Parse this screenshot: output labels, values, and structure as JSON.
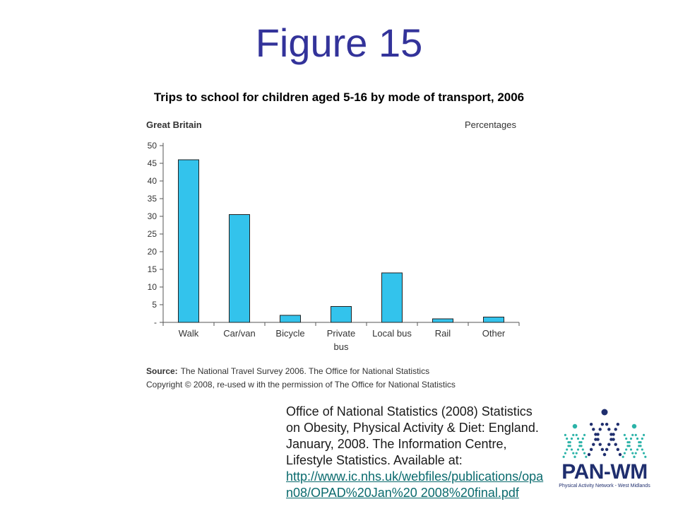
{
  "slide": {
    "title": "Figure 15",
    "chart_heading": "Trips to school for children aged 5-16 by mode of transport, 2006"
  },
  "chart_data": {
    "type": "bar",
    "title": "Trips to school for children aged 5-16 by mode of transport, 2006",
    "region_label": "Great Britain",
    "unit_label": "Percentages",
    "categories": [
      "Walk",
      "Car/van",
      "Bicycle",
      "Private bus",
      "Local bus",
      "Rail",
      "Other"
    ],
    "category_lines": [
      [
        "Walk"
      ],
      [
        "Car/van"
      ],
      [
        "Bicycle"
      ],
      [
        "Private",
        "bus"
      ],
      [
        "Local bus"
      ],
      [
        "Rail"
      ],
      [
        "Other"
      ]
    ],
    "values": [
      46,
      30.5,
      2,
      4.5,
      14,
      1,
      1.5
    ],
    "ylim": [
      0,
      50
    ],
    "yticks": [
      0,
      5,
      10,
      15,
      20,
      25,
      30,
      35,
      40,
      45,
      50
    ],
    "ytick_labels": [
      "-",
      "5",
      "10",
      "15",
      "20",
      "25",
      "30",
      "35",
      "40",
      "45",
      "50"
    ],
    "xlabel": "",
    "ylabel": "",
    "grid": false,
    "bar_color": "#33c3ec",
    "source_label": "Source:",
    "source_text": "The National Travel Survey 2006. The Office for National Statistics",
    "copyright_text": "Copyright © 2008, re-used w ith the permission of The Office for National Statistics"
  },
  "citation": {
    "text": "Office of National Statistics (2008) Statistics on Obesity, Physical Activity & Diet: England.  January, 2008.  The Information Centre, Lifestyle Statistics. Available at:",
    "link": "http://www.ic.nhs.uk/webfiles/publications/opan08/OPAD%20Jan%20 2008%20final.pdf"
  },
  "logo": {
    "name": "PAN-WM",
    "tagline": "Physical Activity Network - West Midlands"
  },
  "colors": {
    "title": "#33339a",
    "link": "#0b6b6e",
    "logo_teal": "#2bb3a8",
    "logo_navy": "#1f2e6e"
  }
}
